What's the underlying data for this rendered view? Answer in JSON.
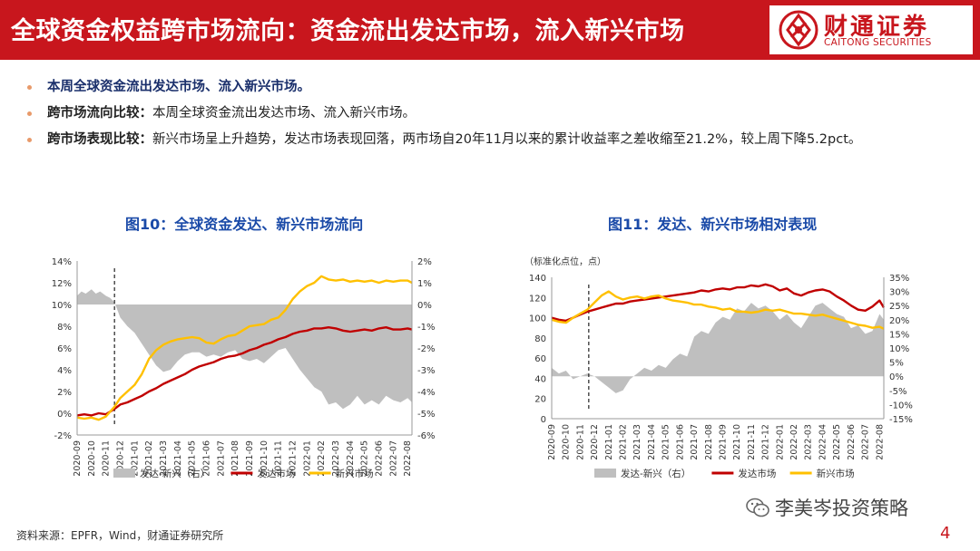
{
  "header": {
    "title": "全球资金权益跨市场流向：资金流出发达市场，流入新兴市场"
  },
  "logo": {
    "cn": "财通证券",
    "en": "CAITONG SECURITIES"
  },
  "bullets": [
    {
      "lead": "本周全球资金流出发达市场、流入新兴市场。",
      "text": ""
    },
    {
      "lead": "跨市场流向比较：",
      "text": "本周全球资金流出发达市场、流入新兴市场。"
    },
    {
      "lead": "跨市场表现比较：",
      "text": "新兴市场呈上升趋势，发达市场表现回落，两市场自20年11月以来的累计收益率之差收缩至21.2%，较上周下降5.2pct。"
    }
  ],
  "colors": {
    "brand": "#c8161d",
    "area": "#bfbfbf",
    "dev": "#c00000",
    "em": "#ffc000",
    "title": "#1a4aa8"
  },
  "chart_data": [
    {
      "type": "line",
      "title": "图10：全球资金发达、新兴市场流向",
      "x_ticks": [
        "2020-09",
        "2020-10",
        "2020-11",
        "2020-12",
        "2021-01",
        "2021-02",
        "2021-03",
        "2021-04",
        "2021-05",
        "2021-06",
        "2021-07",
        "2021-08",
        "2021-09",
        "2021-10",
        "2021-11",
        "2021-12",
        "2022-01",
        "2022-02",
        "2022-03",
        "2022-04",
        "2022-05",
        "2022-06",
        "2022-07",
        "2022-08"
      ],
      "y_left": {
        "min": -2,
        "max": 14,
        "ticks": [
          "-2%",
          "0%",
          "2%",
          "4%",
          "6%",
          "8%",
          "10%",
          "12%",
          "14%"
        ]
      },
      "y_right": {
        "min": -6,
        "max": 2,
        "ticks": [
          "-6%",
          "-5%",
          "-4%",
          "-3%",
          "-2%",
          "-1%",
          "0%",
          "1%",
          "2%"
        ]
      },
      "ylim_left": [
        -2,
        14
      ],
      "ylim_right": [
        -6,
        2
      ],
      "marker_x": 2.6,
      "legend": [
        "发达-新兴（右）",
        "发达市场",
        "新兴市场"
      ],
      "series": [
        {
          "name": "发达-新兴（右）",
          "axis": "right",
          "kind": "area",
          "x": [
            0,
            0.3,
            0.6,
            1,
            1.3,
            1.6,
            2,
            2.3,
            2.6,
            3,
            3.5,
            4,
            4.5,
            5,
            5.5,
            6,
            6.5,
            7,
            7.5,
            8,
            8.5,
            9,
            9.5,
            10,
            10.5,
            11,
            11.5,
            12,
            12.5,
            13,
            13.5,
            14,
            14.5,
            15,
            15.5,
            16,
            16.5,
            17,
            17.5,
            18,
            18.5,
            19,
            19.5,
            20,
            20.5,
            21,
            21.5,
            22,
            22.5,
            23,
            23.3
          ],
          "values": [
            0.4,
            0.6,
            0.5,
            0.7,
            0.5,
            0.6,
            0.4,
            0.3,
            0.1,
            -0.6,
            -1.0,
            -1.3,
            -1.8,
            -2.3,
            -2.8,
            -3.1,
            -3.0,
            -2.6,
            -2.3,
            -2.2,
            -2.2,
            -2.4,
            -2.3,
            -2.4,
            -2.2,
            -2.1,
            -2.5,
            -2.6,
            -2.5,
            -2.7,
            -2.4,
            -2.1,
            -2.0,
            -2.5,
            -3.0,
            -3.4,
            -3.8,
            -4.0,
            -4.6,
            -4.5,
            -4.8,
            -4.6,
            -4.2,
            -4.6,
            -4.4,
            -4.6,
            -4.2,
            -4.4,
            -4.5,
            -4.3,
            -4.5
          ]
        },
        {
          "name": "发达市场",
          "axis": "left",
          "x": [
            0,
            0.5,
            1,
            1.5,
            2,
            2.6,
            3,
            3.5,
            4,
            4.5,
            5,
            5.5,
            6,
            6.5,
            7,
            7.5,
            8,
            8.5,
            9,
            9.5,
            10,
            10.5,
            11,
            11.5,
            12,
            12.5,
            13,
            13.5,
            14,
            14.5,
            15,
            15.5,
            16,
            16.5,
            17,
            17.5,
            18,
            18.5,
            19,
            19.5,
            20,
            20.5,
            21,
            21.5,
            22,
            22.5,
            23,
            23.3
          ],
          "values": [
            -0.2,
            -0.1,
            -0.2,
            0,
            -0.1,
            0.4,
            0.8,
            1.0,
            1.3,
            1.6,
            2.0,
            2.3,
            2.7,
            3.0,
            3.3,
            3.6,
            4.0,
            4.3,
            4.5,
            4.7,
            5.0,
            5.2,
            5.3,
            5.5,
            5.8,
            6.0,
            6.3,
            6.5,
            6.8,
            7.0,
            7.3,
            7.5,
            7.6,
            7.8,
            7.8,
            7.9,
            7.8,
            7.6,
            7.5,
            7.6,
            7.7,
            7.6,
            7.8,
            7.9,
            7.7,
            7.7,
            7.8,
            7.7
          ]
        },
        {
          "name": "新兴市场",
          "axis": "left",
          "x": [
            0,
            0.5,
            1,
            1.5,
            2,
            2.6,
            3,
            3.5,
            4,
            4.5,
            5,
            5.5,
            6,
            6.5,
            7,
            7.5,
            8,
            8.5,
            9,
            9.5,
            10,
            10.5,
            11,
            11.5,
            12,
            12.5,
            13,
            13.5,
            14,
            14.5,
            15,
            15.5,
            16,
            16.5,
            17,
            17.5,
            18,
            18.5,
            19,
            19.5,
            20,
            20.5,
            21,
            21.5,
            22,
            22.5,
            23,
            23.3
          ],
          "values": [
            -0.4,
            -0.5,
            -0.4,
            -0.6,
            -0.3,
            0.6,
            1.4,
            2.0,
            2.6,
            3.6,
            5.0,
            5.8,
            6.3,
            6.6,
            6.8,
            6.9,
            7.0,
            6.9,
            6.5,
            6.4,
            6.8,
            7.1,
            7.2,
            7.6,
            8.0,
            8.1,
            8.2,
            8.6,
            8.8,
            9.5,
            10.5,
            11.2,
            11.7,
            12.0,
            12.6,
            12.3,
            12.2,
            12.3,
            12.1,
            12.2,
            12.1,
            12.2,
            12.0,
            12.2,
            12.1,
            12.2,
            12.2,
            12.0
          ]
        }
      ]
    },
    {
      "type": "line",
      "title": "图11：发达、新兴市场相对表现",
      "unit_label": "（标准化点位，点）",
      "x_ticks": [
        "2020-09",
        "2020-10",
        "2020-11",
        "2020-12",
        "2021-01",
        "2021-02",
        "2021-03",
        "2021-04",
        "2021-05",
        "2021-06",
        "2021-07",
        "2021-08",
        "2021-09",
        "2021-10",
        "2021-11",
        "2021-12",
        "2022-01",
        "2022-02",
        "2022-03",
        "2022-04",
        "2022-05",
        "2022-06",
        "2022-07",
        "2022-08"
      ],
      "y_left": {
        "min": 0,
        "max": 140,
        "ticks": [
          "0",
          "20",
          "40",
          "60",
          "80",
          "100",
          "120",
          "140"
        ]
      },
      "y_right": {
        "min": -15,
        "max": 35,
        "ticks": [
          "-15%",
          "-10%",
          "-5%",
          "0%",
          "5%",
          "10%",
          "15%",
          "20%",
          "25%",
          "30%",
          "35%"
        ]
      },
      "ylim_left": [
        0,
        140
      ],
      "ylim_right": [
        -15,
        35
      ],
      "marker_x": 2.6,
      "legend": [
        "发达-新兴（右）",
        "发达市场",
        "新兴市场"
      ],
      "series": [
        {
          "name": "发达-新兴（右）",
          "axis": "right",
          "kind": "area",
          "x": [
            0,
            0.5,
            1,
            1.5,
            2,
            2.5,
            3,
            3.5,
            4,
            4.5,
            5,
            5.5,
            6,
            6.5,
            7,
            7.5,
            8,
            8.5,
            9,
            9.5,
            10,
            10.5,
            11,
            11.5,
            12,
            12.5,
            13,
            13.5,
            14,
            14.5,
            15,
            15.5,
            16,
            16.5,
            17,
            17.5,
            18,
            18.5,
            19,
            19.5,
            20,
            20.5,
            21,
            21.5,
            22,
            22.5,
            23,
            23.3
          ],
          "values": [
            3,
            1,
            2,
            -1,
            0,
            1,
            0,
            -2,
            -4,
            -6,
            -5,
            -1,
            1,
            3,
            2,
            4,
            3,
            6,
            8,
            7,
            14,
            16,
            15,
            19,
            21,
            20,
            24,
            23,
            26,
            24,
            25,
            23,
            20,
            22,
            19,
            17,
            21,
            25,
            26,
            24,
            22,
            21,
            17,
            18,
            15,
            16,
            22,
            20
          ]
        },
        {
          "name": "发达市场",
          "axis": "left",
          "x": [
            0,
            0.5,
            1,
            1.5,
            2,
            2.5,
            3,
            3.5,
            4,
            4.5,
            5,
            5.5,
            6,
            6.5,
            7,
            7.5,
            8,
            8.5,
            9,
            9.5,
            10,
            10.5,
            11,
            11.5,
            12,
            12.5,
            13,
            13.5,
            14,
            14.5,
            15,
            15.5,
            16,
            16.5,
            17,
            17.5,
            18,
            18.5,
            19,
            19.5,
            20,
            20.5,
            21,
            21.5,
            22,
            22.5,
            23,
            23.3
          ],
          "values": [
            100,
            98,
            97,
            100,
            103,
            106,
            108,
            110,
            112,
            114,
            114,
            116,
            117,
            118,
            119,
            120,
            121,
            122,
            123,
            124,
            125,
            127,
            126,
            128,
            129,
            128,
            130,
            130,
            132,
            131,
            133,
            131,
            127,
            129,
            124,
            122,
            125,
            127,
            128,
            126,
            121,
            117,
            112,
            108,
            107,
            111,
            117,
            110
          ]
        },
        {
          "name": "新兴市场",
          "axis": "left",
          "x": [
            0,
            0.5,
            1,
            1.5,
            2,
            2.5,
            3,
            3.5,
            4,
            4.5,
            5,
            5.5,
            6,
            6.5,
            7,
            7.5,
            8,
            8.5,
            9,
            9.5,
            10,
            10.5,
            11,
            11.5,
            12,
            12.5,
            13,
            13.5,
            14,
            14.5,
            15,
            15.5,
            16,
            16.5,
            17,
            17.5,
            18,
            18.5,
            19,
            19.5,
            20,
            20.5,
            21,
            21.5,
            22,
            22.5,
            23,
            23.3
          ],
          "values": [
            98,
            96,
            95,
            100,
            104,
            108,
            115,
            122,
            126,
            121,
            118,
            120,
            121,
            119,
            121,
            122,
            119,
            117,
            116,
            115,
            113,
            113,
            111,
            110,
            108,
            109,
            106,
            106,
            105,
            106,
            108,
            107,
            108,
            106,
            104,
            104,
            103,
            102,
            103,
            101,
            99,
            97,
            95,
            93,
            92,
            90,
            91,
            89
          ]
        }
      ]
    }
  ]
}
